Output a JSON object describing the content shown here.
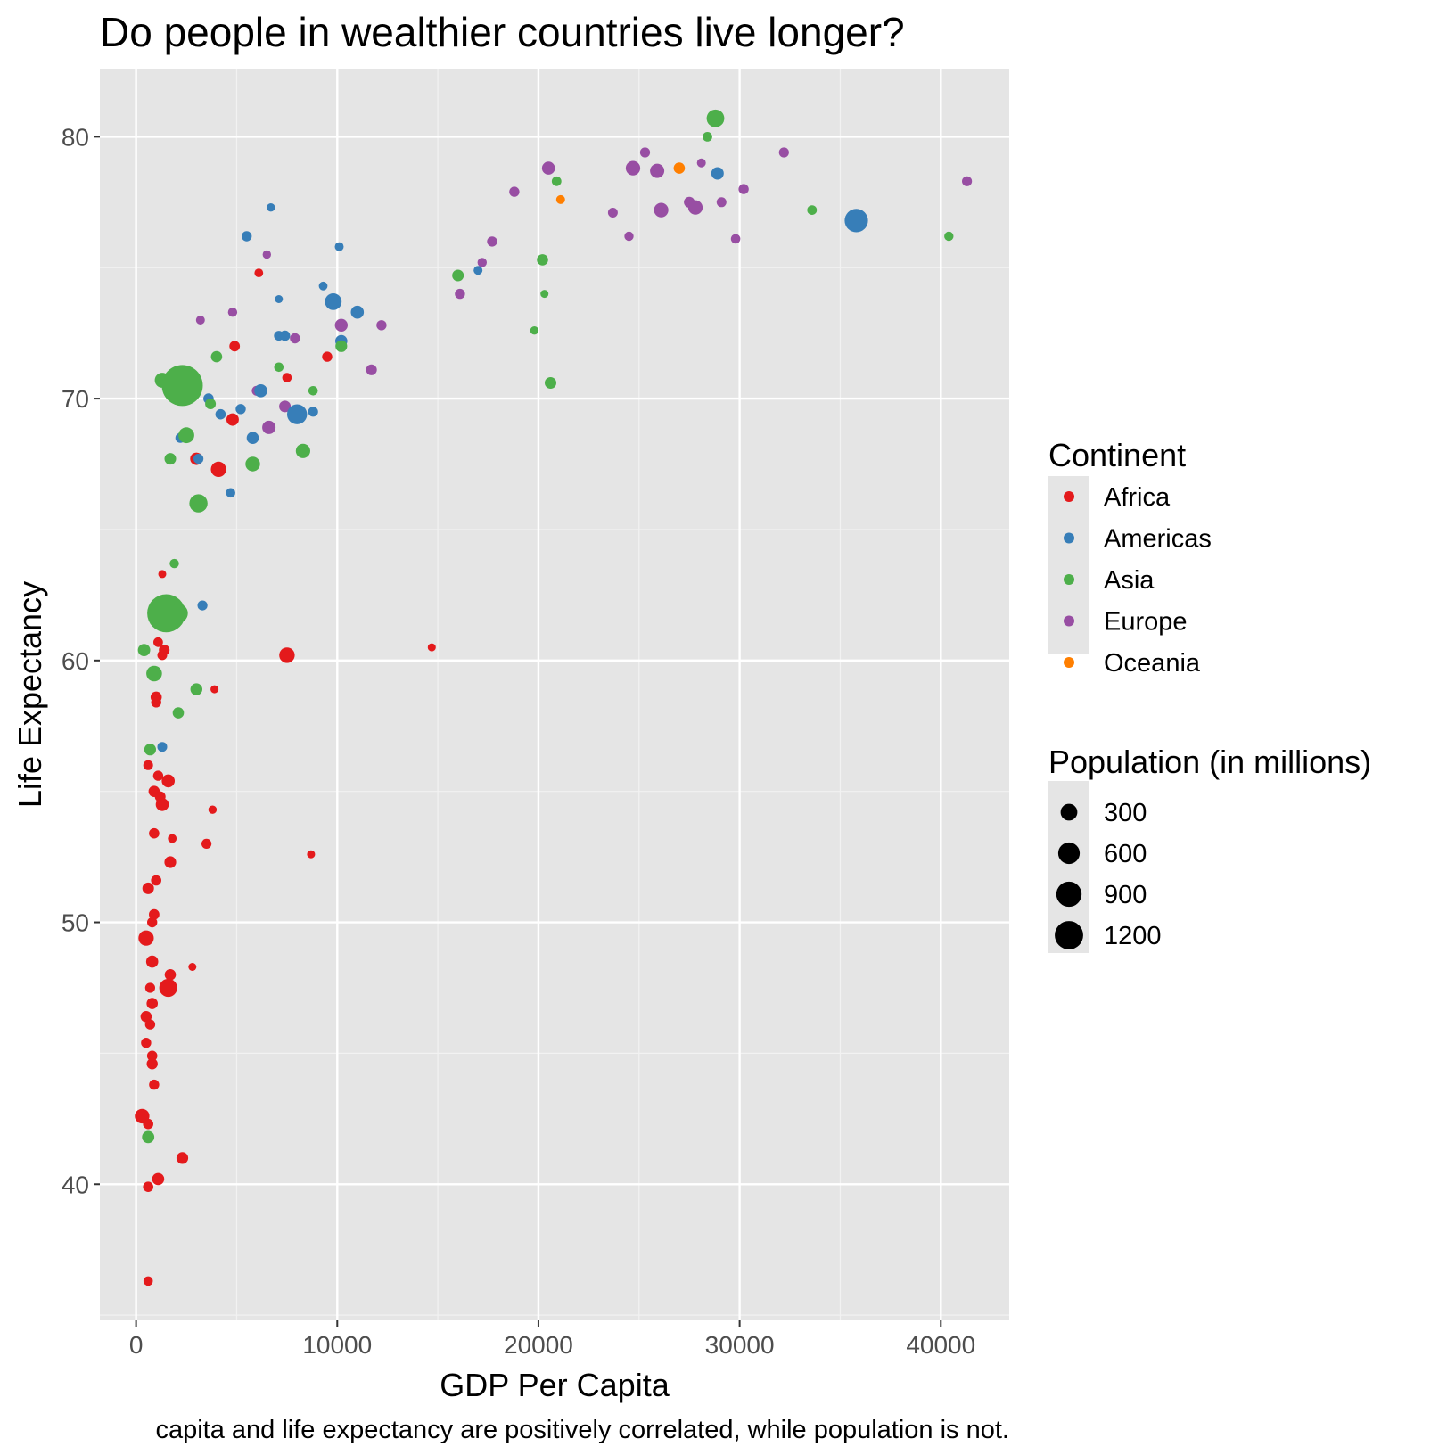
{
  "chart_data": {
    "type": "scatter",
    "title": "Do people in wealthier countries live longer?",
    "xlabel": "GDP Per Capita",
    "ylabel": "Life Expectancy",
    "caption": "GDP per capita and life expectancy are positively correlated, while population is not.",
    "caption_visible": "capita and life expectancy are positively correlated, while population is not.",
    "xlim": [
      -1800,
      43400
    ],
    "ylim": [
      34.8,
      82.6
    ],
    "x_ticks": [
      0,
      10000,
      20000,
      30000,
      40000
    ],
    "x_tick_labels": [
      "0",
      "10000",
      "20000",
      "30000",
      "40000"
    ],
    "y_ticks": [
      40,
      50,
      60,
      70,
      80
    ],
    "y_tick_labels": [
      "40",
      "50",
      "60",
      "70",
      "80"
    ],
    "grid": true,
    "legend_position": "right",
    "color_legend": {
      "title": "Continent",
      "entries": [
        {
          "label": "Africa",
          "color": "#E41A1C"
        },
        {
          "label": "Americas",
          "color": "#377EB8"
        },
        {
          "label": "Asia",
          "color": "#4DAF4A"
        },
        {
          "label": "Europe",
          "color": "#984EA3"
        },
        {
          "label": "Oceania",
          "color": "#FF7F00"
        }
      ]
    },
    "size_legend": {
      "title": "Population (in millions)",
      "entries": [
        {
          "label": "300",
          "value": 300
        },
        {
          "label": "600",
          "value": 600
        },
        {
          "label": "900",
          "value": 900
        },
        {
          "label": "1200",
          "value": 1200
        }
      ]
    },
    "points": [
      {
        "continent": "Asia",
        "x": 28800,
        "y": 80.7,
        "pop": 127
      },
      {
        "continent": "Asia",
        "x": 28400,
        "y": 80.0,
        "pop": 7
      },
      {
        "continent": "Europe",
        "x": 25300,
        "y": 79.4,
        "pop": 9
      },
      {
        "continent": "Europe",
        "x": 32200,
        "y": 79.4,
        "pop": 9
      },
      {
        "continent": "Europe",
        "x": 24700,
        "y": 78.8,
        "pop": 60
      },
      {
        "continent": "Europe",
        "x": 20500,
        "y": 78.8,
        "pop": 40
      },
      {
        "continent": "Oceania",
        "x": 27000,
        "y": 78.8,
        "pop": 20
      },
      {
        "continent": "Europe",
        "x": 25900,
        "y": 78.7,
        "pop": 58
      },
      {
        "continent": "Europe",
        "x": 28100,
        "y": 79.0,
        "pop": 4
      },
      {
        "continent": "Americas",
        "x": 28900,
        "y": 78.6,
        "pop": 33
      },
      {
        "continent": "Asia",
        "x": 20900,
        "y": 78.3,
        "pop": 7
      },
      {
        "continent": "Europe",
        "x": 41300,
        "y": 78.3,
        "pop": 9
      },
      {
        "continent": "Europe",
        "x": 30200,
        "y": 78.0,
        "pop": 10
      },
      {
        "continent": "Europe",
        "x": 18800,
        "y": 77.9,
        "pop": 10
      },
      {
        "continent": "Oceania",
        "x": 21100,
        "y": 77.6,
        "pop": 4
      },
      {
        "continent": "Europe",
        "x": 27500,
        "y": 77.5,
        "pop": 16
      },
      {
        "continent": "Europe",
        "x": 29100,
        "y": 77.5,
        "pop": 8
      },
      {
        "continent": "Europe",
        "x": 27800,
        "y": 77.3,
        "pop": 61
      },
      {
        "continent": "Europe",
        "x": 26100,
        "y": 77.2,
        "pop": 61
      },
      {
        "continent": "Asia",
        "x": 33600,
        "y": 77.2,
        "pop": 7
      },
      {
        "continent": "Europe",
        "x": 23700,
        "y": 77.1,
        "pop": 8
      },
      {
        "continent": "Americas",
        "x": 35800,
        "y": 76.8,
        "pop": 301
      },
      {
        "continent": "Asia",
        "x": 40400,
        "y": 76.2,
        "pop": 5
      },
      {
        "continent": "Europe",
        "x": 24500,
        "y": 76.2,
        "pop": 5
      },
      {
        "continent": "Europe",
        "x": 29800,
        "y": 76.1,
        "pop": 6
      },
      {
        "continent": "Europe",
        "x": 17700,
        "y": 76.0,
        "pop": 10
      },
      {
        "continent": "Europe",
        "x": 17200,
        "y": 75.2,
        "pop": 5
      },
      {
        "continent": "Americas",
        "x": 17000,
        "y": 74.9,
        "pop": 4
      },
      {
        "continent": "Asia",
        "x": 20200,
        "y": 75.3,
        "pop": 20
      },
      {
        "continent": "Asia",
        "x": 16000,
        "y": 74.7,
        "pop": 23
      },
      {
        "continent": "Europe",
        "x": 16100,
        "y": 74.0,
        "pop": 10
      },
      {
        "continent": "Asia",
        "x": 20300,
        "y": 74.0,
        "pop": 1
      },
      {
        "continent": "Asia",
        "x": 19800,
        "y": 72.6,
        "pop": 2
      },
      {
        "continent": "Asia",
        "x": 20600,
        "y": 70.6,
        "pop": 23
      },
      {
        "continent": "Americas",
        "x": 6700,
        "y": 77.3,
        "pop": 2
      },
      {
        "continent": "Americas",
        "x": 5500,
        "y": 76.2,
        "pop": 11
      },
      {
        "continent": "Americas",
        "x": 10100,
        "y": 75.8,
        "pop": 4
      },
      {
        "continent": "Europe",
        "x": 6500,
        "y": 75.5,
        "pop": 2
      },
      {
        "continent": "Africa",
        "x": 6100,
        "y": 74.8,
        "pop": 3
      },
      {
        "continent": "Americas",
        "x": 9300,
        "y": 74.3,
        "pop": 3
      },
      {
        "continent": "Americas",
        "x": 7100,
        "y": 73.8,
        "pop": 1
      },
      {
        "continent": "Americas",
        "x": 9800,
        "y": 73.7,
        "pop": 108
      },
      {
        "continent": "Americas",
        "x": 11000,
        "y": 73.3,
        "pop": 40
      },
      {
        "continent": "Europe",
        "x": 3200,
        "y": 73.0,
        "pop": 4
      },
      {
        "continent": "Europe",
        "x": 4800,
        "y": 73.3,
        "pop": 5
      },
      {
        "continent": "Europe",
        "x": 10200,
        "y": 72.8,
        "pop": 38
      },
      {
        "continent": "Europe",
        "x": 12200,
        "y": 72.8,
        "pop": 10
      },
      {
        "continent": "Americas",
        "x": 7100,
        "y": 72.4,
        "pop": 8
      },
      {
        "continent": "Americas",
        "x": 7400,
        "y": 72.4,
        "pop": 12
      },
      {
        "continent": "Europe",
        "x": 7900,
        "y": 72.3,
        "pop": 10
      },
      {
        "continent": "Americas",
        "x": 10200,
        "y": 72.2,
        "pop": 28
      },
      {
        "continent": "Asia",
        "x": 10200,
        "y": 72.0,
        "pop": 24
      },
      {
        "continent": "Africa",
        "x": 4900,
        "y": 72.0,
        "pop": 13
      },
      {
        "continent": "Africa",
        "x": 9500,
        "y": 71.6,
        "pop": 10
      },
      {
        "continent": "Asia",
        "x": 4000,
        "y": 71.6,
        "pop": 20
      },
      {
        "continent": "Asia",
        "x": 7100,
        "y": 71.2,
        "pop": 6
      },
      {
        "continent": "Europe",
        "x": 11700,
        "y": 71.1,
        "pop": 16
      },
      {
        "continent": "Africa",
        "x": 7500,
        "y": 70.8,
        "pop": 6
      },
      {
        "continent": "Asia",
        "x": 1300,
        "y": 70.7,
        "pop": 70
      },
      {
        "continent": "Asia",
        "x": 2300,
        "y": 70.5,
        "pop": 1319
      },
      {
        "continent": "Europe",
        "x": 6000,
        "y": 70.3,
        "pop": 9
      },
      {
        "continent": "Americas",
        "x": 6200,
        "y": 70.3,
        "pop": 40
      },
      {
        "continent": "Asia",
        "x": 8800,
        "y": 70.3,
        "pop": 6
      },
      {
        "continent": "Americas",
        "x": 3600,
        "y": 70.0,
        "pop": 12
      },
      {
        "continent": "Asia",
        "x": 3700,
        "y": 69.8,
        "pop": 14
      },
      {
        "continent": "Europe",
        "x": 7400,
        "y": 69.7,
        "pop": 22
      },
      {
        "continent": "Americas",
        "x": 5200,
        "y": 69.6,
        "pop": 10
      },
      {
        "continent": "Americas",
        "x": 4200,
        "y": 69.4,
        "pop": 12
      },
      {
        "continent": "Americas",
        "x": 8000,
        "y": 69.4,
        "pop": 190
      },
      {
        "continent": "Americas",
        "x": 8800,
        "y": 69.5,
        "pop": 9
      },
      {
        "continent": "Africa",
        "x": 4800,
        "y": 69.2,
        "pop": 33
      },
      {
        "continent": "Europe",
        "x": 6600,
        "y": 68.9,
        "pop": 45
      },
      {
        "continent": "Americas",
        "x": 2200,
        "y": 68.5,
        "pop": 9
      },
      {
        "continent": "Asia",
        "x": 2500,
        "y": 68.6,
        "pop": 86
      },
      {
        "continent": "Americas",
        "x": 5800,
        "y": 68.5,
        "pop": 28
      },
      {
        "continent": "Asia",
        "x": 8300,
        "y": 68.0,
        "pop": 60
      },
      {
        "continent": "Asia",
        "x": 1700,
        "y": 67.7,
        "pop": 22
      },
      {
        "continent": "Africa",
        "x": 3000,
        "y": 67.7,
        "pop": 32
      },
      {
        "continent": "Americas",
        "x": 3100,
        "y": 67.7,
        "pop": 9
      },
      {
        "continent": "Asia",
        "x": 5800,
        "y": 67.5,
        "pop": 65
      },
      {
        "continent": "Africa",
        "x": 4100,
        "y": 67.3,
        "pop": 76
      },
      {
        "continent": "Americas",
        "x": 4700,
        "y": 66.4,
        "pop": 6
      },
      {
        "continent": "Asia",
        "x": 3100,
        "y": 66.0,
        "pop": 140
      },
      {
        "continent": "Asia",
        "x": 1900,
        "y": 63.7,
        "pop": 5
      },
      {
        "continent": "Africa",
        "x": 1300,
        "y": 63.3,
        "pop": 1
      },
      {
        "continent": "Americas",
        "x": 3300,
        "y": 62.1,
        "pop": 9
      },
      {
        "continent": "Asia",
        "x": 1500,
        "y": 61.8,
        "pop": 1110
      },
      {
        "continent": "Asia",
        "x": 2100,
        "y": 61.8,
        "pop": 165
      },
      {
        "continent": "Africa",
        "x": 1100,
        "y": 60.7,
        "pop": 7
      },
      {
        "continent": "Africa",
        "x": 1400,
        "y": 60.4,
        "pop": 14
      },
      {
        "continent": "Africa",
        "x": 1300,
        "y": 60.2,
        "pop": 8
      },
      {
        "continent": "Africa",
        "x": 7500,
        "y": 60.2,
        "pop": 80
      },
      {
        "continent": "Africa",
        "x": 14700,
        "y": 60.5,
        "pop": 1
      },
      {
        "continent": "Asia",
        "x": 400,
        "y": 60.4,
        "pop": 30
      },
      {
        "continent": "Asia",
        "x": 900,
        "y": 59.5,
        "pop": 85
      },
      {
        "continent": "Africa",
        "x": 3900,
        "y": 58.9,
        "pop": 1
      },
      {
        "continent": "Asia",
        "x": 3000,
        "y": 58.9,
        "pop": 27
      },
      {
        "continent": "Africa",
        "x": 1000,
        "y": 58.6,
        "pop": 20
      },
      {
        "continent": "Africa",
        "x": 1000,
        "y": 58.4,
        "pop": 10
      },
      {
        "continent": "Asia",
        "x": 2100,
        "y": 58.0,
        "pop": 20
      },
      {
        "continent": "Americas",
        "x": 1300,
        "y": 56.7,
        "pop": 8
      },
      {
        "continent": "Asia",
        "x": 700,
        "y": 56.6,
        "pop": 25
      },
      {
        "continent": "Africa",
        "x": 600,
        "y": 56.0,
        "pop": 8
      },
      {
        "continent": "Africa",
        "x": 1100,
        "y": 55.6,
        "pop": 10
      },
      {
        "continent": "Africa",
        "x": 1600,
        "y": 55.4,
        "pop": 40
      },
      {
        "continent": "Africa",
        "x": 900,
        "y": 55.0,
        "pop": 20
      },
      {
        "continent": "Africa",
        "x": 1200,
        "y": 54.8,
        "pop": 14
      },
      {
        "continent": "Africa",
        "x": 1300,
        "y": 54.5,
        "pop": 40
      },
      {
        "continent": "Africa",
        "x": 3800,
        "y": 54.3,
        "pop": 2
      },
      {
        "continent": "Africa",
        "x": 900,
        "y": 53.4,
        "pop": 12
      },
      {
        "continent": "Africa",
        "x": 1800,
        "y": 53.2,
        "pop": 3
      },
      {
        "continent": "Africa",
        "x": 3500,
        "y": 53.0,
        "pop": 9
      },
      {
        "continent": "Africa",
        "x": 8700,
        "y": 52.6,
        "pop": 1
      },
      {
        "continent": "Africa",
        "x": 1700,
        "y": 52.3,
        "pop": 24
      },
      {
        "continent": "Africa",
        "x": 1000,
        "y": 51.6,
        "pop": 12
      },
      {
        "continent": "Africa",
        "x": 600,
        "y": 51.3,
        "pop": 22
      },
      {
        "continent": "Africa",
        "x": 900,
        "y": 50.3,
        "pop": 13
      },
      {
        "continent": "Africa",
        "x": 800,
        "y": 50.0,
        "pop": 10
      },
      {
        "continent": "Africa",
        "x": 500,
        "y": 49.4,
        "pop": 77
      },
      {
        "continent": "Africa",
        "x": 800,
        "y": 48.5,
        "pop": 28
      },
      {
        "continent": "Africa",
        "x": 2800,
        "y": 48.3,
        "pop": 1
      },
      {
        "continent": "Africa",
        "x": 1700,
        "y": 48.0,
        "pop": 20
      },
      {
        "continent": "Africa",
        "x": 1600,
        "y": 47.5,
        "pop": 135
      },
      {
        "continent": "Africa",
        "x": 700,
        "y": 47.5,
        "pop": 9
      },
      {
        "continent": "Africa",
        "x": 800,
        "y": 46.9,
        "pop": 19
      },
      {
        "continent": "Africa",
        "x": 500,
        "y": 46.4,
        "pop": 20
      },
      {
        "continent": "Africa",
        "x": 700,
        "y": 46.1,
        "pop": 11
      },
      {
        "continent": "Africa",
        "x": 500,
        "y": 45.4,
        "pop": 10
      },
      {
        "continent": "Africa",
        "x": 800,
        "y": 44.9,
        "pop": 12
      },
      {
        "continent": "Africa",
        "x": 800,
        "y": 44.6,
        "pop": 18
      },
      {
        "continent": "Africa",
        "x": 900,
        "y": 43.8,
        "pop": 10
      },
      {
        "continent": "Africa",
        "x": 300,
        "y": 42.6,
        "pop": 64
      },
      {
        "continent": "Africa",
        "x": 600,
        "y": 42.3,
        "pop": 12
      },
      {
        "continent": "Asia",
        "x": 600,
        "y": 41.8,
        "pop": 31
      },
      {
        "continent": "Africa",
        "x": 2300,
        "y": 41.0,
        "pop": 24
      },
      {
        "continent": "Africa",
        "x": 1100,
        "y": 40.2,
        "pop": 28
      },
      {
        "continent": "Africa",
        "x": 600,
        "y": 39.9,
        "pop": 12
      },
      {
        "continent": "Africa",
        "x": 600,
        "y": 36.3,
        "pop": 6
      }
    ]
  }
}
